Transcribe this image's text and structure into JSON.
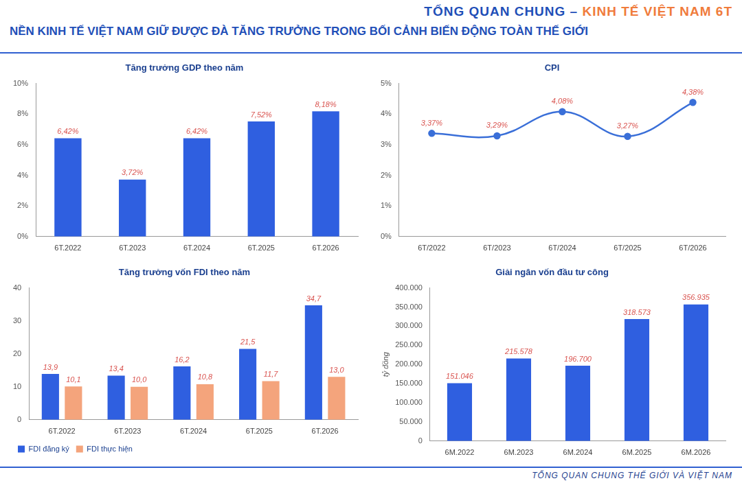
{
  "header": {
    "title_part1": "TỔNG QUAN CHUNG –",
    "title_part2": "KINH TẾ VIỆT NAM 6T",
    "subtitle": "NỀN KINH TẾ VIỆT NAM GIỮ ĐƯỢC ĐÀ TĂNG TRƯỞNG TRONG BỐI CẢNH BIẾN ĐỘNG TOÀN THẾ GIỚI"
  },
  "chart_data": [
    {
      "type": "bar",
      "title": "Tăng trưởng GDP theo năm",
      "categories": [
        "6T.2022",
        "6T.2023",
        "6T.2024",
        "6T.2025",
        "6T.2026"
      ],
      "values": [
        6.42,
        3.72,
        6.42,
        7.52,
        8.18
      ],
      "value_labels": [
        "6,42%",
        "3,72%",
        "6,42%",
        "7,52%",
        "8,18%"
      ],
      "color": "#2f5fe0",
      "data_labels": true,
      "grid": false,
      "ylim": [
        0,
        10
      ],
      "yticks": [
        {
          "value": 0,
          "label": "0%"
        },
        {
          "value": 2,
          "label": "2%"
        },
        {
          "value": 4,
          "label": "4%"
        },
        {
          "value": 6,
          "label": "6%"
        },
        {
          "value": 8,
          "label": "8%"
        },
        {
          "value": 10,
          "label": "10%"
        }
      ]
    },
    {
      "type": "line",
      "title": "CPI",
      "categories": [
        "6T/2022",
        "6T/2023",
        "6T/2024",
        "6T/2025",
        "6T/2026"
      ],
      "values": [
        3.37,
        3.29,
        4.08,
        3.27,
        4.38
      ],
      "value_labels": [
        "3,37%",
        "3,29%",
        "4,08%",
        "3,27%",
        "4,38%"
      ],
      "color": "#3a6fd8",
      "marker": "circle",
      "data_labels": true,
      "grid": false,
      "ylim": [
        0,
        5
      ],
      "yticks": [
        {
          "value": 0,
          "label": "0%"
        },
        {
          "value": 1,
          "label": "1%"
        },
        {
          "value": 2,
          "label": "2%"
        },
        {
          "value": 3,
          "label": "3%"
        },
        {
          "value": 4,
          "label": "4%"
        },
        {
          "value": 5,
          "label": "5%"
        }
      ]
    },
    {
      "type": "bar",
      "title": "Tăng trưởng vốn FDI theo năm",
      "categories": [
        "6T.2022",
        "6T.2023",
        "6T.2024",
        "6T.2025",
        "6T.2026"
      ],
      "series": [
        {
          "name": "FDI đăng ký",
          "color": "#2f5fe0",
          "values": [
            13.9,
            13.4,
            16.2,
            21.5,
            34.7
          ],
          "value_labels": [
            "13,9",
            "13,4",
            "16,2",
            "21,5",
            "34,7"
          ]
        },
        {
          "name": "FDI thực hiện",
          "color": "#f4a47c",
          "values": [
            10.1,
            10.0,
            10.8,
            11.7,
            13.0
          ],
          "value_labels": [
            "10,1",
            "10,0",
            "10,8",
            "11,7",
            "13,0"
          ]
        }
      ],
      "data_labels": true,
      "grid": false,
      "legend": "bottom",
      "ylim": [
        0,
        40
      ],
      "yticks": [
        0,
        10,
        20,
        30,
        40
      ]
    },
    {
      "type": "bar",
      "title": "Giải ngân vốn đầu tư công",
      "y_label": "tỷ đồng",
      "categories": [
        "6M.2022",
        "6M.2023",
        "6M.2024",
        "6M.2025",
        "6M.2026"
      ],
      "values": [
        151046,
        215578,
        196700,
        318573,
        356935
      ],
      "value_labels": [
        "151.046",
        "215.578",
        "196.700",
        "318.573",
        "356.935"
      ],
      "color": "#2f5fe0",
      "data_labels": true,
      "grid": false,
      "ylim": [
        0,
        400000
      ],
      "yticks": [
        0,
        {
          "value": 50000,
          "label": "50.000"
        },
        {
          "value": 100000,
          "label": "100.000"
        },
        {
          "value": 150000,
          "label": "150.000"
        },
        {
          "value": 200000,
          "label": "200.000"
        },
        {
          "value": 250000,
          "label": "250.000"
        },
        {
          "value": 300000,
          "label": "300.000"
        },
        {
          "value": 350000,
          "label": "350.000"
        },
        {
          "value": 400000,
          "label": "400.000"
        }
      ]
    }
  ],
  "footer": "TỔNG QUAN CHUNG THẾ GIỚI VÀ VIỆT NAM"
}
